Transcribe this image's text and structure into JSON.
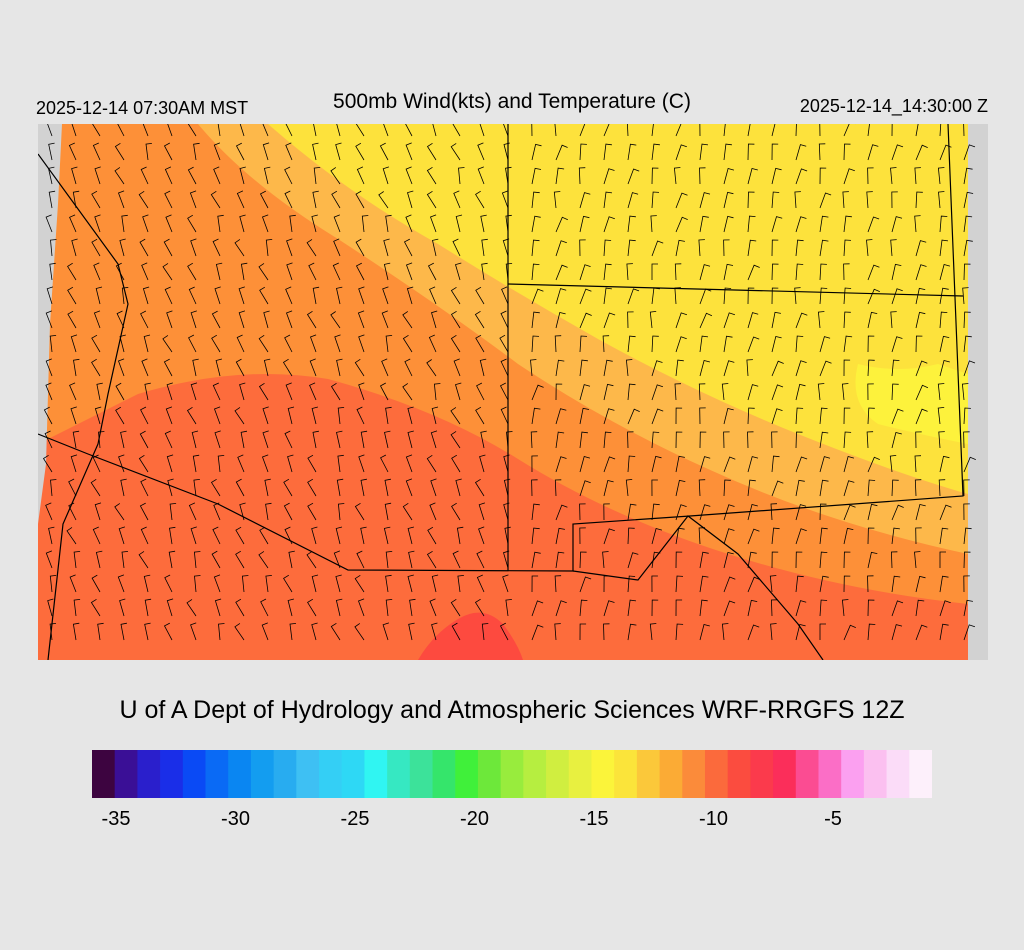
{
  "header": {
    "local_time": "2025-12-14 07:30AM MST",
    "title": "500mb Wind(kts) and Temperature (C)",
    "valid_time": "2025-12-14_14:30:00 Z"
  },
  "credit": "U of A Dept of Hydrology and Atmospheric Sciences WRF-RRGFS 12Z",
  "colorbar": {
    "colors": [
      "#3d0440",
      "#3a0f96",
      "#2a1fcc",
      "#1a2ee8",
      "#0a4af5",
      "#0a6af5",
      "#0a86f2",
      "#139df0",
      "#28acf0",
      "#3ec0f3",
      "#34cff5",
      "#2ed8f5",
      "#30f5f2",
      "#36e8c2",
      "#3ce29a",
      "#35e56b",
      "#40f03a",
      "#6de83a",
      "#98ec3d",
      "#b6ee40",
      "#d0ee40",
      "#e8f040",
      "#fbf43a",
      "#fbe43a",
      "#fbc83a",
      "#fbab35",
      "#fb8b3a",
      "#fb6a3c",
      "#fb4c3f",
      "#fb3a4c",
      "#fb2e5a",
      "#fb4c92",
      "#fb6ec6",
      "#fba0f0",
      "#fbc0f0",
      "#fbdcf8",
      "#fdf0fb"
    ],
    "ticks": [
      "-35",
      "-30",
      "-25",
      "-20",
      "-15",
      "-10",
      "-5"
    ]
  },
  "map": {
    "fill_colors": {
      "yellow": "#fde23c",
      "light_orange": "#fdb84a",
      "orange": "#fd9038",
      "red_orange": "#fd6c3c",
      "red": "#fd4a3f",
      "bright_yellow": "#fdf23c",
      "no_data": "#d2d2d2"
    }
  }
}
